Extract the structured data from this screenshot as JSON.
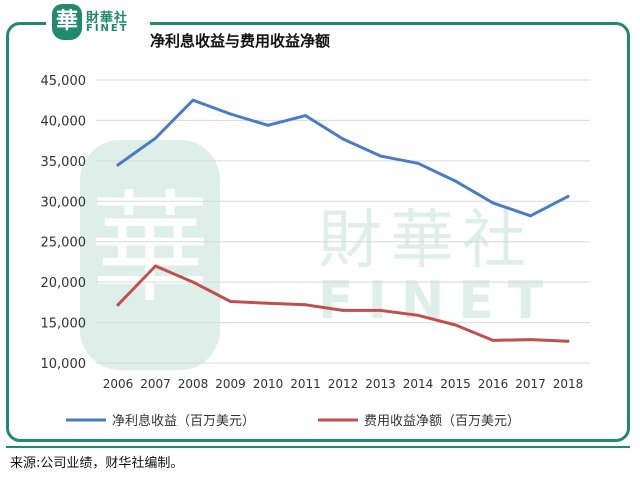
{
  "brand": {
    "mark": "華",
    "name_cn": "財華社",
    "name_en": "FINET"
  },
  "watermark": {
    "mark": "華",
    "text_cn": "財華社",
    "text_en": "FINET"
  },
  "title": "净利息收益与费用收益净额",
  "source": "来源:公司业绩，财华社编制。",
  "colors": {
    "accent": "#1f8a6c",
    "series1": "#4a7cc4",
    "series2": "#c0504d"
  },
  "chart_data": {
    "type": "line",
    "title": "净利息收益与费用收益净额",
    "x": [
      "2006",
      "2007",
      "2008",
      "2009",
      "2010",
      "2011",
      "2012",
      "2013",
      "2014",
      "2015",
      "2016",
      "2017",
      "2018"
    ],
    "yticks": [
      "10,000",
      "15,000",
      "20,000",
      "25,000",
      "30,000",
      "35,000",
      "40,000",
      "45,000"
    ],
    "ylim": [
      10000,
      45000
    ],
    "grid": true,
    "legend_position": "bottom",
    "series": [
      {
        "name": "净利息收益（百万美元）",
        "color": "#4a7cc4",
        "values": [
          34500,
          37800,
          42500,
          40800,
          39400,
          40600,
          37700,
          35600,
          34700,
          32500,
          29800,
          28200,
          30600
        ]
      },
      {
        "name": "费用收益净额（百万美元）",
        "color": "#c0504d",
        "values": [
          17200,
          22000,
          20000,
          17600,
          17400,
          17200,
          16500,
          16500,
          15900,
          14700,
          12800,
          12900,
          12700
        ]
      }
    ]
  }
}
